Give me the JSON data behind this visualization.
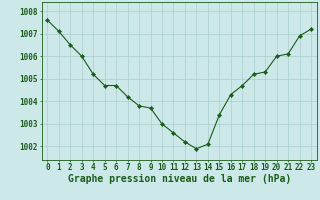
{
  "x": [
    0,
    1,
    2,
    3,
    4,
    5,
    6,
    7,
    8,
    9,
    10,
    11,
    12,
    13,
    14,
    15,
    16,
    17,
    18,
    19,
    20,
    21,
    22,
    23
  ],
  "y": [
    1007.6,
    1007.1,
    1006.5,
    1006.0,
    1005.2,
    1004.7,
    1004.7,
    1004.2,
    1003.8,
    1003.7,
    1003.0,
    1002.6,
    1002.2,
    1001.9,
    1002.1,
    1003.4,
    1004.3,
    1004.7,
    1005.2,
    1005.3,
    1006.0,
    1006.1,
    1006.9,
    1007.2
  ],
  "line_color": "#1a5c1a",
  "marker": "D",
  "marker_size": 2.2,
  "bg_color": "#cce8e8",
  "grid_color": "#aacece",
  "spine_color": "#1a5c1a",
  "xlabel": "Graphe pression niveau de la mer (hPa)",
  "xlabel_color": "#1a5c1a",
  "xlabel_fontsize": 7.0,
  "tick_label_color": "#1a5c1a",
  "tick_fontsize": 5.5,
  "ytick_labels": [
    "1002",
    "1003",
    "1004",
    "1005",
    "1006",
    "1007",
    "1008"
  ],
  "ytick_vals": [
    1002,
    1003,
    1004,
    1005,
    1006,
    1007,
    1008
  ],
  "ylim": [
    1001.4,
    1008.4
  ],
  "xlim": [
    -0.5,
    23.5
  ],
  "figwidth": 3.2,
  "figheight": 2.0,
  "dpi": 100
}
